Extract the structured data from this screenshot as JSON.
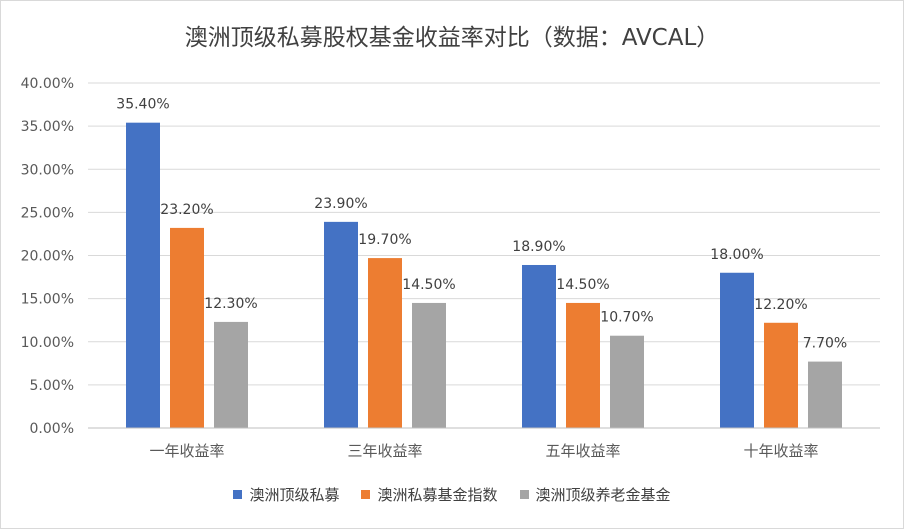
{
  "chart_data": {
    "type": "bar",
    "title": "澳洲顶级私募股权基金收益率对比（数据：AVCAL）",
    "categories": [
      "一年收益率",
      "三年收益率",
      "五年收益率",
      "十年收益率"
    ],
    "series": [
      {
        "name": "澳洲顶级私募",
        "color": "#4472c4",
        "values": [
          35.4,
          23.9,
          18.9,
          18.0
        ],
        "labels": [
          "35.40%",
          "23.90%",
          "18.90%",
          "18.00%"
        ]
      },
      {
        "name": "澳洲私募基金指数",
        "color": "#ed7d31",
        "values": [
          23.2,
          19.7,
          14.5,
          12.2
        ],
        "labels": [
          "23.20%",
          "19.70%",
          "14.50%",
          "12.20%"
        ]
      },
      {
        "name": "澳洲顶级养老金基金",
        "color": "#a5a5a5",
        "values": [
          12.3,
          14.5,
          10.7,
          7.7
        ],
        "labels": [
          "12.30%",
          "14.50%",
          "10.70%",
          "7.70%"
        ]
      }
    ],
    "ylim": [
      0,
      40
    ],
    "yticks": [
      {
        "value": 0,
        "label": "0.00%"
      },
      {
        "value": 5,
        "label": "5.00%"
      },
      {
        "value": 10,
        "label": "10.00%"
      },
      {
        "value": 15,
        "label": "15.00%"
      },
      {
        "value": 20,
        "label": "20.00%"
      },
      {
        "value": 25,
        "label": "25.00%"
      },
      {
        "value": 30,
        "label": "30.00%"
      },
      {
        "value": 35,
        "label": "35.00%"
      },
      {
        "value": 40,
        "label": "40.00%"
      }
    ],
    "grid": true,
    "legend_position": "bottom"
  }
}
